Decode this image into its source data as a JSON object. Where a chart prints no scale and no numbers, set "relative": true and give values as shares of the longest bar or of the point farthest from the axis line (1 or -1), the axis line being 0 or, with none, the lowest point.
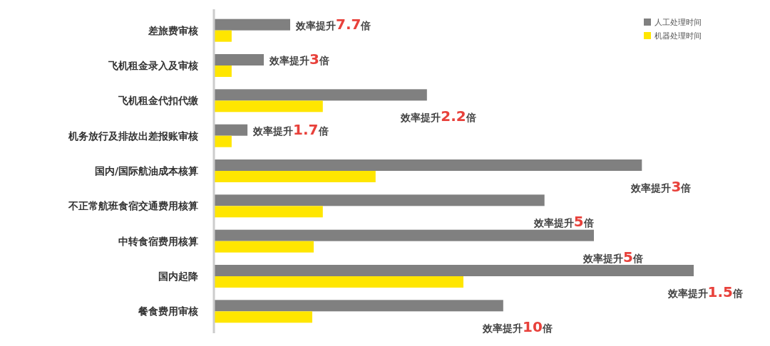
{
  "chart_data": {
    "type": "bar",
    "orientation": "horizontal",
    "relative": true,
    "legend": "top right",
    "categories": [
      "差旅费审核",
      "飞机租金录入及审核",
      "飞机租金代扣代缴",
      "机务放行及排故出差报账审核",
      "国内/国际航油成本核算",
      "不正常航班食宿交通费用核算",
      "中转食宿费用核算",
      "国内起降",
      "餐食费用审核"
    ],
    "series": [
      {
        "name": "人工处理时间",
        "color": "#808080",
        "values": [
          0.159,
          0.104,
          0.444,
          0.07,
          0.892,
          0.689,
          0.792,
          1,
          0.603
        ]
      },
      {
        "name": "机器处理时间",
        "color": "#ffe600",
        "values": [
          0.037,
          0.037,
          0.227,
          0.037,
          0.337,
          0.227,
          0.208,
          0.52,
          0.205
        ]
      }
    ],
    "annotations": [
      {
        "text": "效率提升7.7倍",
        "x": 0.159,
        "y": "差旅费审核"
      },
      {
        "text": "效率提升3倍",
        "x": 0.104,
        "y": "飞机租金录入及审核"
      },
      {
        "text": "效率提升2.2倍",
        "x": 0.444,
        "y": "飞机租金代扣代缴"
      },
      {
        "text": "效率提升1.7倍",
        "x": 0.07,
        "y": "机务放行及排故出差报账审核"
      },
      {
        "text": "效率提升3倍",
        "x": 0.892,
        "y": "国内/国际航油成本核算"
      },
      {
        "text": "效率提升5倍",
        "x": 0.689,
        "y": "不正常航班食宿交通费用核算"
      },
      {
        "text": "效率提升5倍",
        "x": 0.792,
        "y": "中转食宿费用核算"
      },
      {
        "text": "效率提升1.5倍",
        "x": 1,
        "y": "国内起降"
      },
      {
        "text": "效率提升10倍",
        "x": 0.603,
        "y": "餐食费用审核"
      }
    ]
  }
}
